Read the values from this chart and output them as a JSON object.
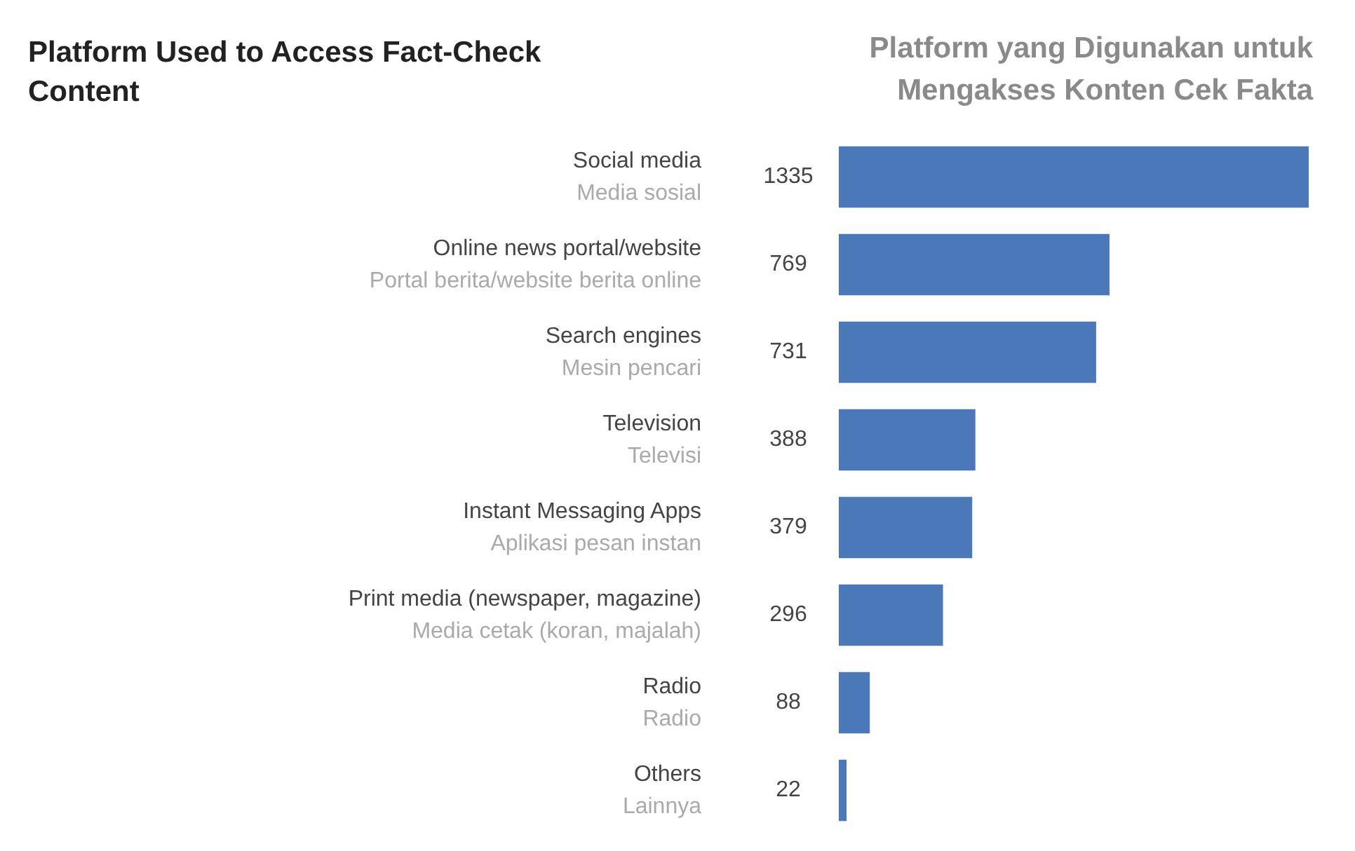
{
  "chart_data": {
    "type": "bar",
    "orientation": "horizontal",
    "title": "Platform Used to Access Fact-Check\nContent",
    "subtitle": "Platform yang Digunakan untuk\nMengakses Konten Cek Fakta",
    "categories": [
      "Social media\nMedia sosial",
      "Online news portal/website\nPortal berita/website berita online",
      "Search engines\nMesin pencari",
      "Television\nTelevisi",
      "Instant Messaging Apps\nAplikasi pesan instan",
      "Print media (newspaper, magazine)\nMedia cetak (koran, majalah)",
      "Radio\nRadio",
      "Others\nLainnya"
    ],
    "values": [
      1335,
      769,
      731,
      388,
      379,
      296,
      88,
      22
    ],
    "color": "#4a78b8",
    "data_labels": true,
    "legend": false
  }
}
